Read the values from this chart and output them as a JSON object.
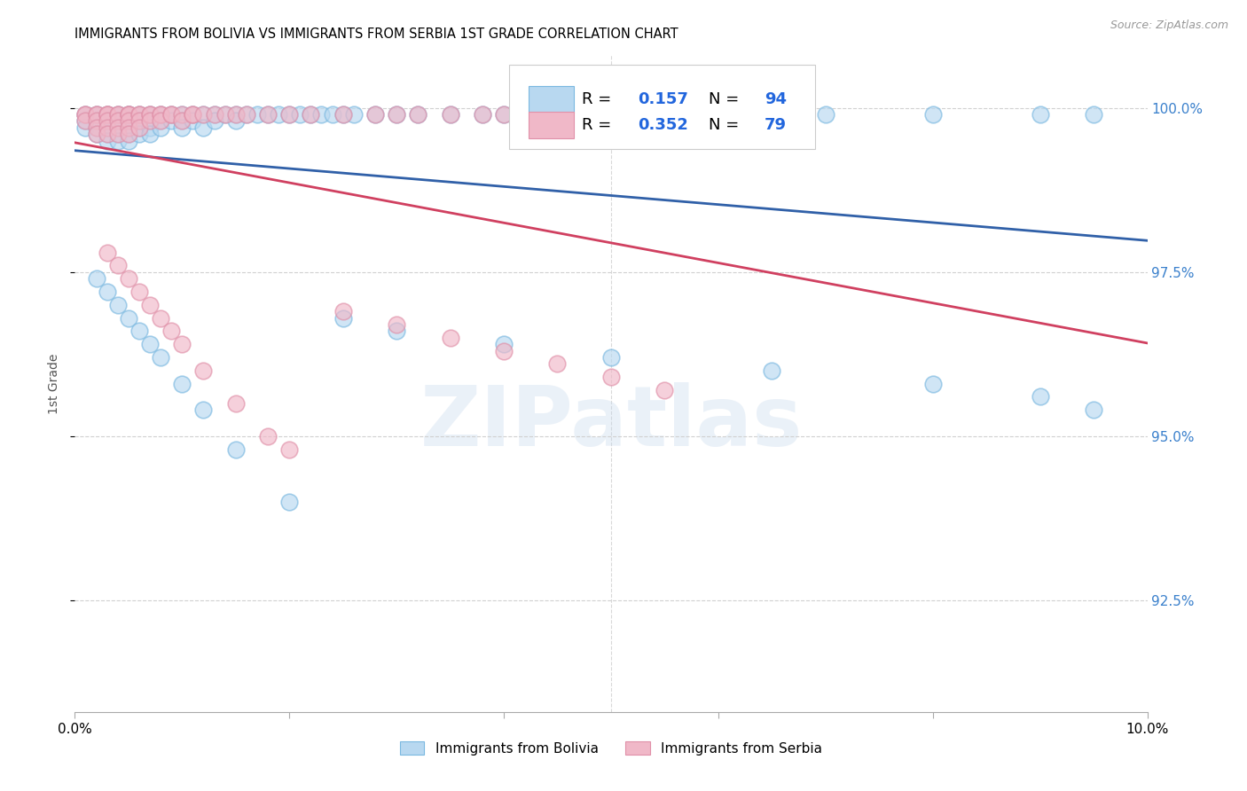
{
  "title": "IMMIGRANTS FROM BOLIVIA VS IMMIGRANTS FROM SERBIA 1ST GRADE CORRELATION CHART",
  "source": "Source: ZipAtlas.com",
  "ylabel": "1st Grade",
  "ytick_values": [
    0.925,
    0.95,
    0.975,
    1.0
  ],
  "ytick_labels": [
    "92.5%",
    "95.0%",
    "97.5%",
    "100.0%"
  ],
  "xtick_values": [
    0.0,
    0.02,
    0.04,
    0.06,
    0.08,
    0.1
  ],
  "xtick_labels": [
    "0.0%",
    "",
    "",
    "",
    "",
    "10.0%"
  ],
  "xlim": [
    0.0,
    0.1
  ],
  "ylim": [
    0.908,
    1.008
  ],
  "color_bolivia_edge": "#7ab8e0",
  "color_serbia_edge": "#e090a8",
  "color_bolivia_fill": "#b8d8f0",
  "color_serbia_fill": "#f0b8c8",
  "color_bolivia_line": "#3060a8",
  "color_serbia_line": "#d04060",
  "legend_r_bolivia": "0.157",
  "legend_n_bolivia": "94",
  "legend_r_serbia": "0.352",
  "legend_n_serbia": "79",
  "watermark": "ZIPatlas",
  "legend_label_bolivia": "Immigrants from Bolivia",
  "legend_label_serbia": "Immigrants from Serbia",
  "bolivia_x": [
    0.001,
    0.001,
    0.001,
    0.002,
    0.002,
    0.002,
    0.002,
    0.003,
    0.003,
    0.003,
    0.003,
    0.003,
    0.003,
    0.004,
    0.004,
    0.004,
    0.004,
    0.004,
    0.005,
    0.005,
    0.005,
    0.005,
    0.005,
    0.005,
    0.006,
    0.006,
    0.006,
    0.006,
    0.007,
    0.007,
    0.007,
    0.007,
    0.008,
    0.008,
    0.008,
    0.009,
    0.009,
    0.01,
    0.01,
    0.01,
    0.011,
    0.011,
    0.012,
    0.012,
    0.013,
    0.013,
    0.014,
    0.015,
    0.015,
    0.016,
    0.017,
    0.018,
    0.019,
    0.02,
    0.021,
    0.022,
    0.023,
    0.024,
    0.025,
    0.026,
    0.028,
    0.03,
    0.032,
    0.035,
    0.038,
    0.04,
    0.045,
    0.05,
    0.055,
    0.06,
    0.065,
    0.07,
    0.08,
    0.09,
    0.095,
    0.002,
    0.003,
    0.004,
    0.005,
    0.006,
    0.007,
    0.008,
    0.01,
    0.012,
    0.015,
    0.02,
    0.025,
    0.03,
    0.04,
    0.05,
    0.065,
    0.08,
    0.09,
    0.095
  ],
  "bolivia_y": [
    0.999,
    0.998,
    0.997,
    0.999,
    0.998,
    0.997,
    0.996,
    0.999,
    0.998,
    0.998,
    0.997,
    0.996,
    0.995,
    0.999,
    0.998,
    0.997,
    0.996,
    0.995,
    0.999,
    0.999,
    0.998,
    0.997,
    0.996,
    0.995,
    0.999,
    0.998,
    0.997,
    0.996,
    0.999,
    0.998,
    0.997,
    0.996,
    0.999,
    0.998,
    0.997,
    0.999,
    0.998,
    0.999,
    0.998,
    0.997,
    0.999,
    0.998,
    0.999,
    0.997,
    0.999,
    0.998,
    0.999,
    0.999,
    0.998,
    0.999,
    0.999,
    0.999,
    0.999,
    0.999,
    0.999,
    0.999,
    0.999,
    0.999,
    0.999,
    0.999,
    0.999,
    0.999,
    0.999,
    0.999,
    0.999,
    0.999,
    0.999,
    0.999,
    0.999,
    0.999,
    0.999,
    0.999,
    0.999,
    0.999,
    0.999,
    0.974,
    0.972,
    0.97,
    0.968,
    0.966,
    0.964,
    0.962,
    0.958,
    0.954,
    0.948,
    0.94,
    0.968,
    0.966,
    0.964,
    0.962,
    0.96,
    0.958,
    0.956,
    0.954
  ],
  "serbia_x": [
    0.001,
    0.001,
    0.001,
    0.002,
    0.002,
    0.002,
    0.002,
    0.002,
    0.003,
    0.003,
    0.003,
    0.003,
    0.003,
    0.003,
    0.004,
    0.004,
    0.004,
    0.004,
    0.004,
    0.005,
    0.005,
    0.005,
    0.005,
    0.005,
    0.005,
    0.006,
    0.006,
    0.006,
    0.006,
    0.007,
    0.007,
    0.007,
    0.008,
    0.008,
    0.008,
    0.009,
    0.009,
    0.01,
    0.01,
    0.011,
    0.011,
    0.012,
    0.013,
    0.014,
    0.015,
    0.016,
    0.018,
    0.02,
    0.022,
    0.025,
    0.028,
    0.03,
    0.032,
    0.035,
    0.038,
    0.04,
    0.042,
    0.045,
    0.048,
    0.05,
    0.003,
    0.004,
    0.005,
    0.006,
    0.007,
    0.008,
    0.009,
    0.01,
    0.012,
    0.015,
    0.018,
    0.02,
    0.025,
    0.03,
    0.035,
    0.04,
    0.045,
    0.05,
    0.055
  ],
  "serbia_y": [
    0.999,
    0.999,
    0.998,
    0.999,
    0.999,
    0.998,
    0.997,
    0.996,
    0.999,
    0.999,
    0.999,
    0.998,
    0.997,
    0.996,
    0.999,
    0.999,
    0.998,
    0.997,
    0.996,
    0.999,
    0.999,
    0.999,
    0.998,
    0.997,
    0.996,
    0.999,
    0.999,
    0.998,
    0.997,
    0.999,
    0.999,
    0.998,
    0.999,
    0.999,
    0.998,
    0.999,
    0.999,
    0.999,
    0.998,
    0.999,
    0.999,
    0.999,
    0.999,
    0.999,
    0.999,
    0.999,
    0.999,
    0.999,
    0.999,
    0.999,
    0.999,
    0.999,
    0.999,
    0.999,
    0.999,
    0.999,
    0.999,
    0.999,
    0.999,
    0.999,
    0.978,
    0.976,
    0.974,
    0.972,
    0.97,
    0.968,
    0.966,
    0.964,
    0.96,
    0.955,
    0.95,
    0.948,
    0.969,
    0.967,
    0.965,
    0.963,
    0.961,
    0.959,
    0.957
  ]
}
